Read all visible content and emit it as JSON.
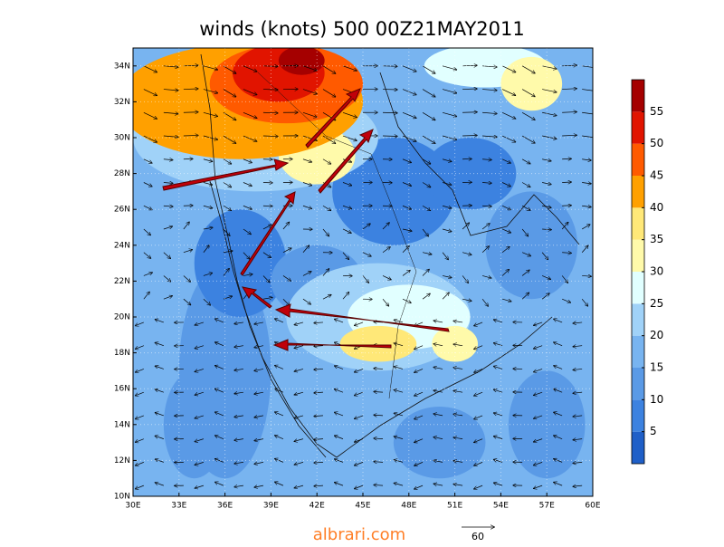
{
  "chart_data": {
    "type": "contour-map",
    "title": "winds (knots) 500 00Z21MAY2011",
    "xlim": [
      30,
      60
    ],
    "ylim": [
      10,
      35
    ],
    "xticks": [
      {
        "value": 30,
        "label": "30E"
      },
      {
        "value": 33,
        "label": "33E"
      },
      {
        "value": 36,
        "label": "36E"
      },
      {
        "value": 39,
        "label": "39E"
      },
      {
        "value": 42,
        "label": "42E"
      },
      {
        "value": 45,
        "label": "45E"
      },
      {
        "value": 48,
        "label": "48E"
      },
      {
        "value": 51,
        "label": "51E"
      },
      {
        "value": 54,
        "label": "54E"
      },
      {
        "value": 57,
        "label": "57E"
      },
      {
        "value": 60,
        "label": "60E"
      }
    ],
    "yticks": [
      {
        "value": 10,
        "label": "10N"
      },
      {
        "value": 12,
        "label": "12N"
      },
      {
        "value": 14,
        "label": "14N"
      },
      {
        "value": 16,
        "label": "16N"
      },
      {
        "value": 18,
        "label": "18N"
      },
      {
        "value": 20,
        "label": "20N"
      },
      {
        "value": 22,
        "label": "22N"
      },
      {
        "value": 24,
        "label": "24N"
      },
      {
        "value": 26,
        "label": "26N"
      },
      {
        "value": 28,
        "label": "28N"
      },
      {
        "value": 30,
        "label": "30N"
      },
      {
        "value": 32,
        "label": "32N"
      },
      {
        "value": 34,
        "label": "34N"
      }
    ],
    "colorbar": {
      "lim": [
        0,
        60
      ],
      "ticks": [
        5,
        10,
        15,
        20,
        25,
        30,
        35,
        40,
        45,
        50,
        55
      ],
      "colors": [
        "#1f5fc8",
        "#3c82e0",
        "#5a9ae6",
        "#78b4f0",
        "#a0d2f8",
        "#e1ffff",
        "#fffaaa",
        "#ffe878",
        "#ffa000",
        "#ff5a00",
        "#e11400",
        "#a50000"
      ]
    },
    "reference_vector": 60,
    "watermark": "albrari.com"
  }
}
